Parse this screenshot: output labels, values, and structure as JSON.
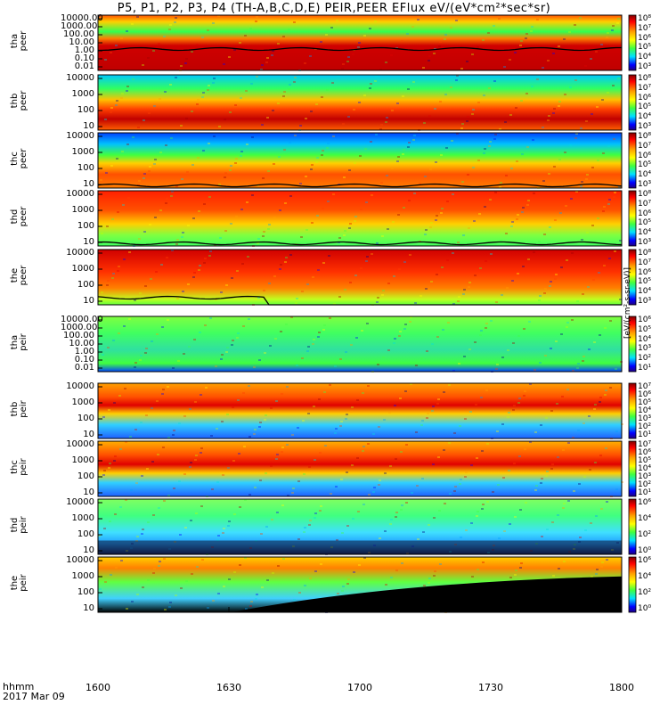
{
  "title": "P5, P1, P2, P3, P4 (TH-A,B,C,D,E) PEIR,PEER EFlux eV/(eV*cm²*sec*sr)",
  "time_legend": {
    "label": "hhmm",
    "date": "2017 Mar 09"
  },
  "colorbar_units": "[eV/(cm²-s-sr-eV)]",
  "colors": {
    "frame": "#000000",
    "trace": "#000000",
    "fill_mask": "#000000"
  },
  "chart_data": {
    "type": "heatmap",
    "x_ticks": [
      "1600",
      "1630",
      "1700",
      "1730",
      "1800"
    ],
    "x_range": [
      "1600",
      "1800"
    ],
    "panels": [
      {
        "id": "tha-peer",
        "probe": "tha",
        "species": "peer",
        "yticks": [
          "10000.00",
          "1000.00",
          "100.00",
          "10.00",
          "1.00",
          "0.10",
          "0.01"
        ],
        "cb_ticks": [
          "10⁸",
          "10⁷",
          "10⁶",
          "10⁵",
          "10⁴",
          "10³"
        ],
        "band": "red core below 10 eV, green above",
        "trace": true
      },
      {
        "id": "thb-peer",
        "probe": "thb",
        "species": "peer",
        "yticks": [
          "10000",
          "1000",
          "100",
          "10"
        ],
        "cb_ticks": [
          "10⁸",
          "10⁷",
          "10⁶",
          "10⁵",
          "10⁴",
          "10³"
        ],
        "band": "red at low energy, green/blue high",
        "trace": false
      },
      {
        "id": "thc-peer",
        "probe": "thc",
        "species": "peer",
        "yticks": [
          "10000",
          "1000",
          "100",
          "10"
        ],
        "cb_ticks": [
          "10⁸",
          "10⁷",
          "10⁶",
          "10⁵",
          "10⁴",
          "10³"
        ],
        "band": "yellow-red band near 100 eV",
        "trace": true
      },
      {
        "id": "thd-peer",
        "probe": "thd",
        "species": "peer",
        "yticks": [
          "10000",
          "1000",
          "100",
          "10"
        ],
        "cb_ticks": [
          "10⁸",
          "10⁷",
          "10⁶",
          "10⁵",
          "10⁴",
          "10³"
        ],
        "band": "red upper, green lower",
        "trace": true
      },
      {
        "id": "the-peer",
        "probe": "the",
        "species": "peer",
        "yticks": [
          "10000",
          "1000",
          "100",
          "10"
        ],
        "cb_ticks": [
          "10⁸",
          "10⁷",
          "10⁶",
          "10⁵",
          "10⁴",
          "10³"
        ],
        "band": "red dominant",
        "trace": true
      },
      {
        "id": "tha-peir",
        "probe": "tha",
        "species": "peir",
        "yticks": [
          "10000.00",
          "1000.00",
          "100.00",
          "10.00",
          "1.00",
          "0.10",
          "0.01"
        ],
        "cb_ticks": [
          "10⁶",
          "10⁵",
          "10⁴",
          "10³",
          "10²",
          "10¹"
        ],
        "band": "green noisy",
        "trace": false
      },
      {
        "id": "thb-peir",
        "probe": "thb",
        "species": "peir",
        "yticks": [
          "10000",
          "1000",
          "100",
          "10"
        ],
        "cb_ticks": [
          "10⁷",
          "10⁶",
          "10⁵",
          "10⁴",
          "10³",
          "10²",
          "10¹"
        ],
        "band": "red band near 1000 eV",
        "trace": false
      },
      {
        "id": "thc-peir",
        "probe": "thc",
        "species": "peir",
        "yticks": [
          "10000",
          "1000",
          "100",
          "10"
        ],
        "cb_ticks": [
          "10⁷",
          "10⁶",
          "10⁵",
          "10⁴",
          "10³",
          "10²",
          "10¹"
        ],
        "band": "red band near 1000 eV",
        "trace": false
      },
      {
        "id": "thd-peir",
        "probe": "thd",
        "species": "peir",
        "yticks": [
          "10000",
          "1000",
          "100",
          "10"
        ],
        "cb_ticks": [
          "10⁶",
          "10⁴",
          "10²",
          "10⁰"
        ],
        "band": "green upper, dark lower",
        "trace": false
      },
      {
        "id": "the-peir",
        "probe": "the",
        "species": "peir",
        "yticks": [
          "10000",
          "1000",
          "100",
          "10"
        ],
        "cb_ticks": [
          "10⁶",
          "10⁴",
          "10²",
          "10⁰"
        ],
        "band": "yellow/red upper, black lower right",
        "trace": false
      }
    ]
  }
}
